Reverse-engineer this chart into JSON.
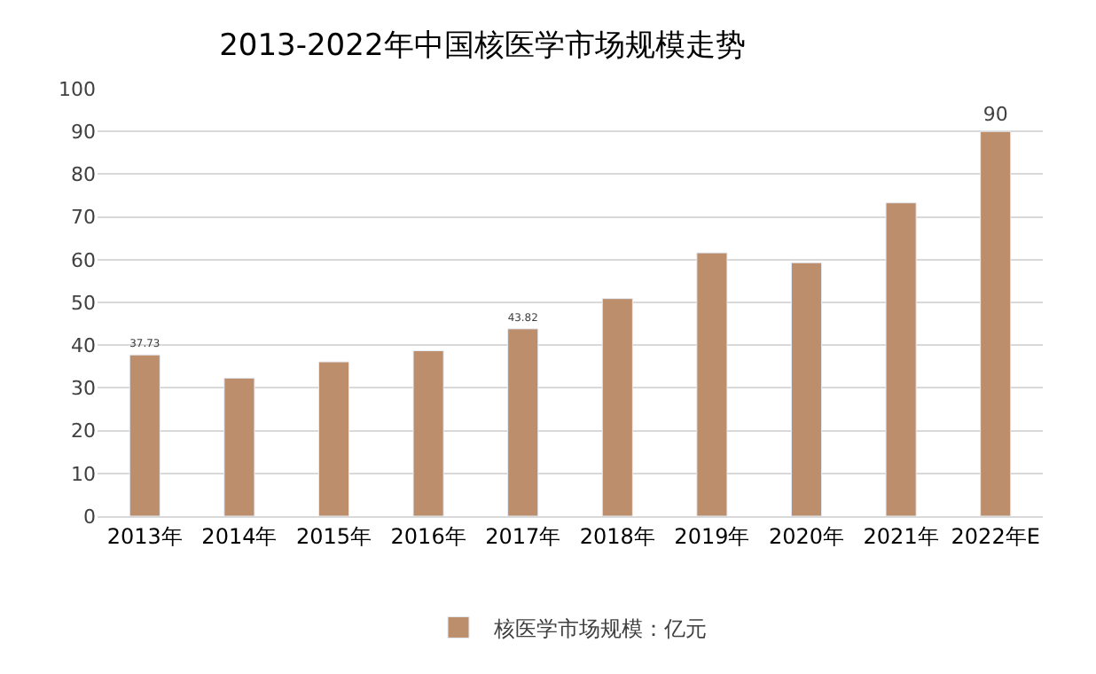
{
  "chart_data": {
    "type": "bar",
    "title": "2013-2022年中国核医学市场规模走势",
    "categories": [
      "2013年",
      "2014年",
      "2015年",
      "2016年",
      "2017年",
      "2018年",
      "2019年",
      "2020年",
      "2021年",
      "2022年E"
    ],
    "series": [
      {
        "name": "核医学市场规模：亿元",
        "color": "#bc8e6c",
        "values": [
          37.73,
          32.3,
          36.1,
          38.7,
          43.82,
          50.9,
          61.6,
          59.3,
          73.3,
          90
        ],
        "value_labels": [
          "37.73",
          null,
          null,
          null,
          "43.82",
          null,
          null,
          null,
          null,
          "90"
        ]
      }
    ],
    "ylim": [
      0,
      100
    ],
    "yticks": [
      0,
      10,
      20,
      30,
      40,
      50,
      60,
      70,
      80,
      90,
      100
    ],
    "grid": "y",
    "legend": "bottom"
  }
}
